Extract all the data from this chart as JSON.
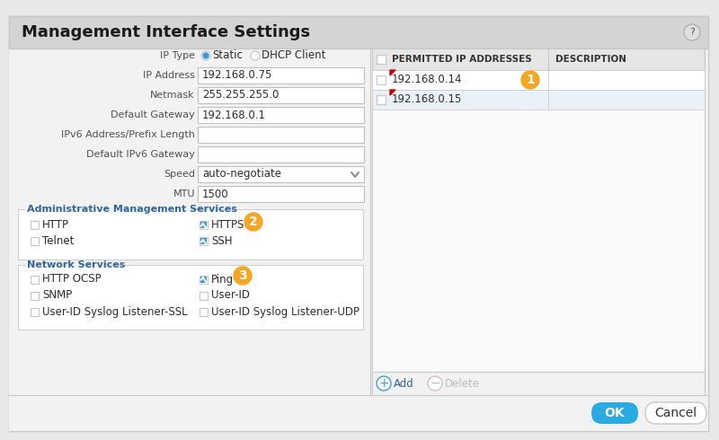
{
  "title": "Management Interface Settings",
  "bg_color": "#e8e8e8",
  "dialog_bg": "#ffffff",
  "header_bg": "#d4d4d4",
  "content_bg": "#f2f2f2",
  "left_fields": [
    {
      "label": "IP Type",
      "value": null,
      "special": "ip_type"
    },
    {
      "label": "IP Address",
      "value": "192.168.0.75"
    },
    {
      "label": "Netmask",
      "value": "255.255.255.0"
    },
    {
      "label": "Default Gateway",
      "value": "192.168.0.1"
    },
    {
      "label": "IPv6 Address/Prefix Length",
      "value": ""
    },
    {
      "label": "Default IPv6 Gateway",
      "value": ""
    },
    {
      "label": "Speed",
      "value": "auto-negotiate",
      "dropdown": true
    },
    {
      "label": "MTU",
      "value": "1500"
    }
  ],
  "admin_services": {
    "title": "Administrative Management Services",
    "left": [
      "HTTP",
      "Telnet"
    ],
    "right": [
      "HTTPS",
      "SSH"
    ],
    "left_checked": [
      false,
      false
    ],
    "right_checked": [
      true,
      true
    ],
    "badge": "2"
  },
  "network_services": {
    "title": "Network Services",
    "left": [
      "HTTP OCSP",
      "SNMP",
      "User-ID Syslog Listener-SSL"
    ],
    "right": [
      "Ping",
      "User-ID",
      "User-ID Syslog Listener-UDP"
    ],
    "left_checked": [
      false,
      false,
      false
    ],
    "right_checked": [
      true,
      false,
      false
    ],
    "badge": "3"
  },
  "table_headers": [
    "PERMITTED IP ADDRESSES",
    "DESCRIPTION"
  ],
  "table_col_split": 0.53,
  "table_rows": [
    {
      "ip": "192.168.0.14",
      "desc": ""
    },
    {
      "ip": "192.168.0.15",
      "desc": ""
    }
  ],
  "badge1_label": "1",
  "ok_btn_color": "#29abe2",
  "ok_btn_text": "OK",
  "cancel_btn_text": "Cancel",
  "add_text": "Add",
  "delete_text": "Delete",
  "checkbox_color": "#3b9dd2",
  "radio_fill": "#3b9dd2",
  "badge_color": "#f5a623",
  "badge_text_color": "#ffffff",
  "section_title_color": "#336699",
  "border_color": "#c8c8c8",
  "inner_border": "#d0d0d0",
  "table_header_bg": "#e6e6e6",
  "table_row1_bg": "#ffffff",
  "table_row2_bg": "#e8f2f8",
  "input_bg": "#ffffff",
  "input_border": "#c0c0c0",
  "text_color": "#2c2c2c",
  "label_color": "#505050",
  "add_color": "#336699",
  "delete_color": "#bbbbbb"
}
